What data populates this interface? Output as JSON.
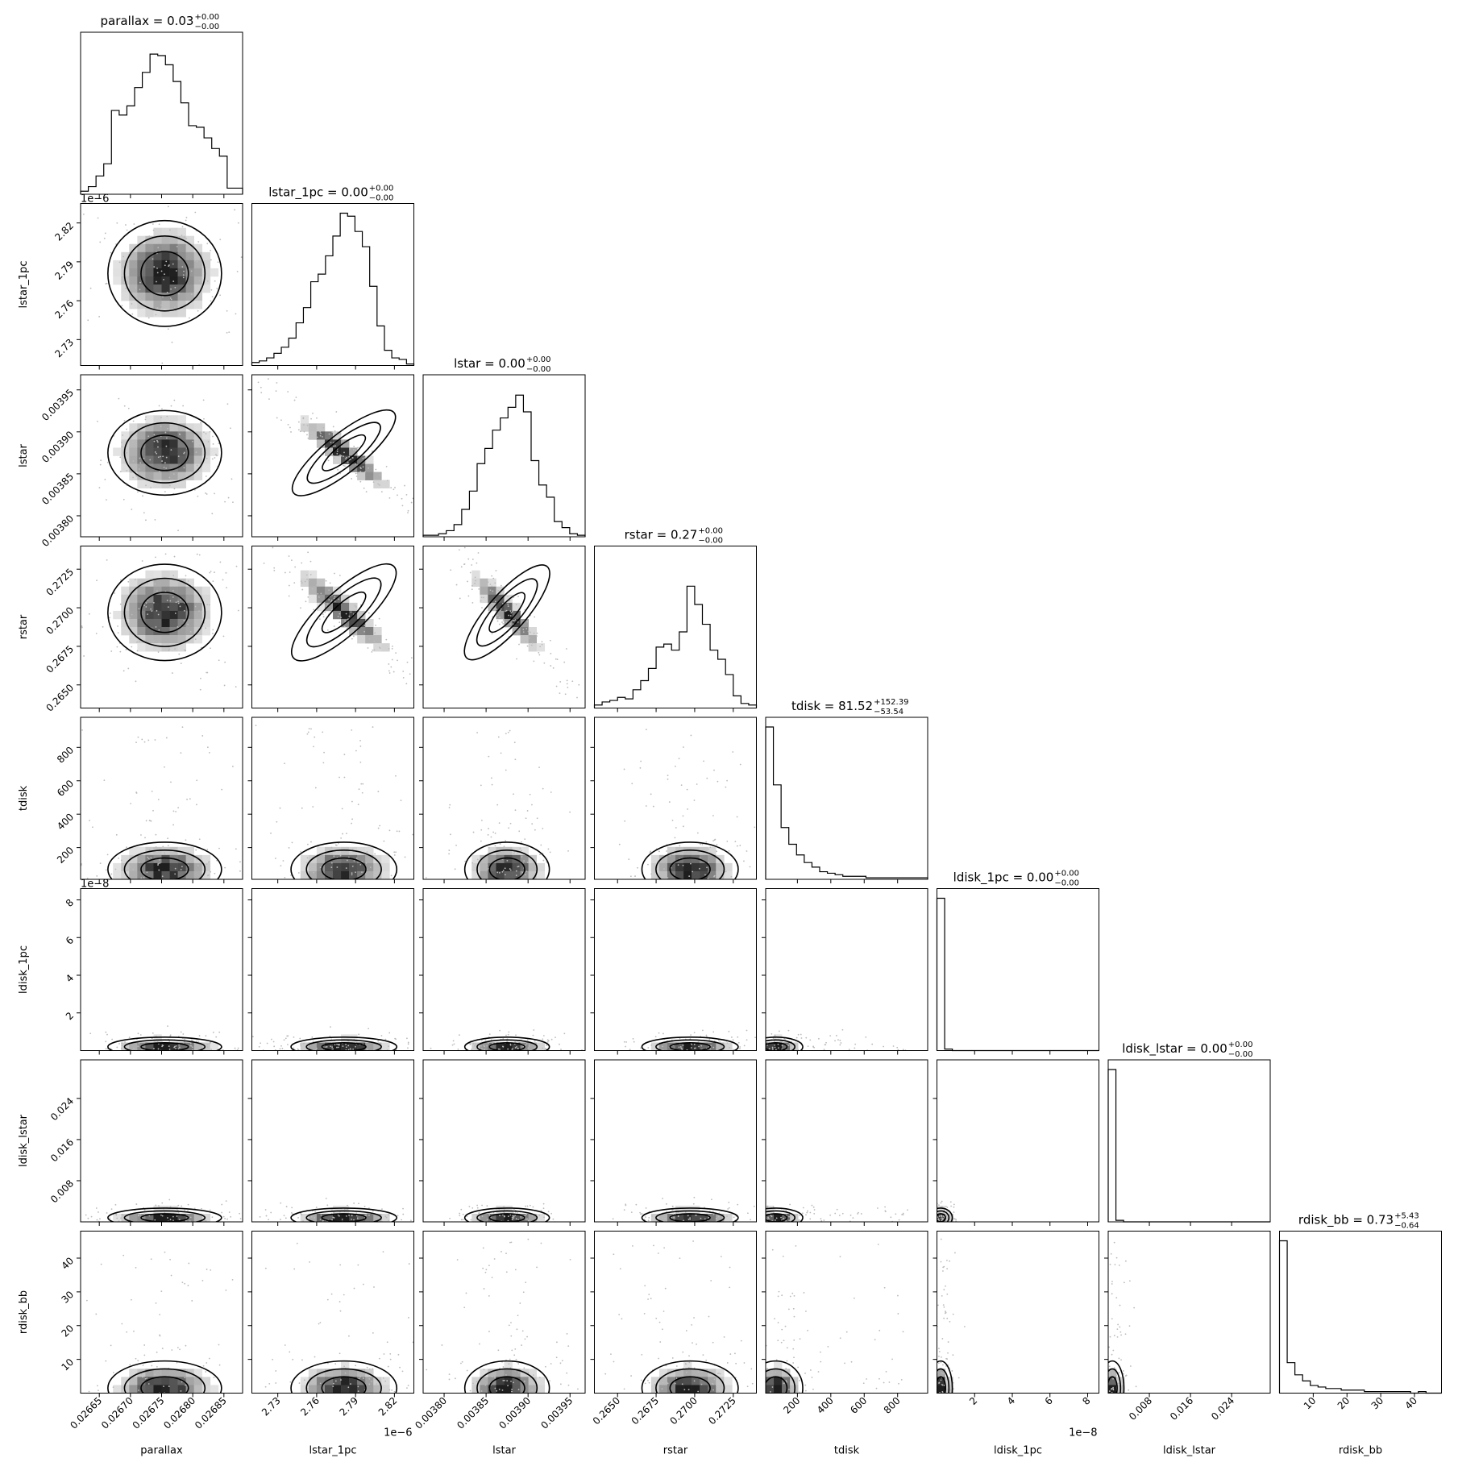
{
  "chart_data": {
    "type": "corner",
    "params": [
      {
        "key": "parallax",
        "label": "parallax",
        "value": "0.03",
        "plus": "+0.00",
        "minus": "−0.00",
        "range": [
          0.02662,
          0.02688
        ],
        "ticks": [
          0.02665,
          0.0267,
          0.02675,
          0.0268,
          0.02685
        ],
        "tick_labels": [
          "0.02665",
          "0.02670",
          "0.02675",
          "0.02680",
          "0.02685"
        ],
        "offset_text": "",
        "center": 0.026755,
        "sigma": 3.8e-05,
        "dist": "gauss"
      },
      {
        "key": "lstar_1pc",
        "label": "lstar_1pc",
        "value": "0.00",
        "plus": "+0.00",
        "minus": "−0.00",
        "range": [
          2.71,
          2.835
        ],
        "ticks": [
          2.73,
          2.76,
          2.79,
          2.82
        ],
        "tick_labels": [
          "2.73",
          "2.76",
          "2.79",
          "2.82"
        ],
        "offset_text": "1e−6",
        "center": 2.781,
        "sigma": 0.017,
        "dist": "gauss"
      },
      {
        "key": "lstar",
        "label": "lstar",
        "value": "0.00",
        "plus": "+0.00",
        "minus": "−0.00",
        "range": [
          0.003775,
          0.003968
        ],
        "ticks": [
          0.0038,
          0.00385,
          0.0039,
          0.00395
        ],
        "tick_labels": [
          "0.00380",
          "0.00385",
          "0.00390",
          "0.00395"
        ],
        "offset_text": "",
        "center": 0.003875,
        "sigma": 2.1e-05,
        "dist": "gauss"
      },
      {
        "key": "rstar",
        "label": "rstar",
        "value": "0.27",
        "plus": "+0.00",
        "minus": "−0.00",
        "range": [
          0.2635,
          0.274
        ],
        "ticks": [
          0.265,
          0.2675,
          0.27,
          0.2725
        ],
        "tick_labels": [
          "0.2650",
          "0.2675",
          "0.2700",
          "0.2725"
        ],
        "offset_text": "",
        "center": 0.2697,
        "sigma": 0.0013,
        "dist": "gauss"
      },
      {
        "key": "tdisk",
        "label": "tdisk",
        "value": "81.52",
        "plus": "+152.39",
        "minus": "−53.54",
        "range": [
          10,
          980
        ],
        "ticks": [
          200,
          400,
          600,
          800
        ],
        "tick_labels": [
          "200",
          "400",
          "600",
          "800"
        ],
        "offset_text": "",
        "center": 70,
        "sigma": 60,
        "dist": "skew"
      },
      {
        "key": "ldisk_1pc",
        "label": "ldisk_1pc",
        "value": "0.00",
        "plus": "+0.00",
        "minus": "−0.00",
        "range": [
          0.0,
          8.6
        ],
        "ticks": [
          2,
          4,
          6,
          8
        ],
        "tick_labels": [
          "2",
          "4",
          "6",
          "8"
        ],
        "offset_text": "1e−8",
        "center": 0.2,
        "sigma": 0.15,
        "dist": "spike"
      },
      {
        "key": "ldisk_lstar",
        "label": "ldisk_lstar",
        "value": "0.00",
        "plus": "+0.00",
        "minus": "−0.00",
        "range": [
          0.0,
          0.0315
        ],
        "ticks": [
          0.008,
          0.016,
          0.024
        ],
        "tick_labels": [
          "0.008",
          "0.016",
          "0.024"
        ],
        "offset_text": "",
        "center": 0.0008,
        "sigma": 0.0006,
        "dist": "spike"
      },
      {
        "key": "rdisk_bb",
        "label": "rdisk_bb",
        "value": "0.73",
        "plus": "+5.43",
        "minus": "−0.64",
        "range": [
          0.0,
          48
        ],
        "ticks": [
          10,
          20,
          30,
          40
        ],
        "tick_labels": [
          "10",
          "20",
          "30",
          "40"
        ],
        "offset_text": "",
        "center": 1.5,
        "sigma": 2.5,
        "dist": "skew"
      }
    ],
    "hist_heights": {
      "parallax": [
        2,
        5,
        12,
        20,
        55,
        52,
        58,
        70,
        80,
        92,
        91,
        85,
        74,
        60,
        45,
        44,
        37,
        30,
        25,
        4,
        4
      ],
      "lstar_1pc": [
        2,
        3,
        5,
        8,
        12,
        18,
        28,
        38,
        55,
        60,
        72,
        85,
        100,
        98,
        88,
        78,
        52,
        26,
        10,
        5,
        4,
        1
      ],
      "lstar": [
        1,
        1,
        2,
        4,
        8,
        18,
        30,
        48,
        58,
        70,
        78,
        85,
        93,
        82,
        50,
        34,
        26,
        10,
        6,
        2,
        1
      ],
      "rstar": [
        2,
        4,
        5,
        7,
        6,
        12,
        18,
        26,
        40,
        42,
        38,
        50,
        80,
        68,
        55,
        38,
        32,
        22,
        8,
        3,
        2
      ],
      "tdisk": [
        100,
        62,
        34,
        23,
        16,
        11,
        8,
        5,
        4,
        3,
        2,
        2,
        2,
        1,
        1,
        1,
        1,
        1,
        1,
        1,
        1
      ],
      "ldisk_1pc": [
        100,
        1,
        0,
        0,
        0,
        0,
        0,
        0,
        0,
        0,
        0,
        0,
        0,
        0,
        0,
        0,
        0,
        0,
        0,
        0,
        0
      ],
      "ldisk_lstar": [
        100,
        1,
        0,
        0,
        0,
        0,
        0,
        0,
        0,
        0,
        0,
        0,
        0,
        0,
        0,
        0,
        0,
        0,
        0,
        0,
        0
      ],
      "rdisk_bb": [
        100,
        20,
        12,
        8,
        5,
        4,
        3,
        3,
        2,
        2,
        2,
        1,
        1,
        1,
        1,
        1,
        1,
        0,
        1,
        0,
        0
      ]
    }
  }
}
